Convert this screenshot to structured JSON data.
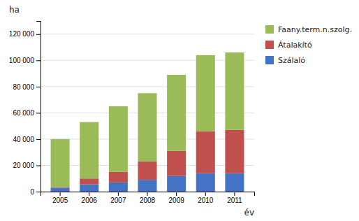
{
  "chart_data": {
    "type": "bar",
    "stacked": true,
    "x_label": "év",
    "y_label": "ha",
    "categories": [
      "2005",
      "2006",
      "2007",
      "2008",
      "2009",
      "2010",
      "2011"
    ],
    "series": [
      {
        "name": "Szálaló",
        "color": "#4472c4",
        "values": [
          3000,
          5500,
          7000,
          9000,
          12000,
          14000,
          14000
        ]
      },
      {
        "name": "Átalakító",
        "color": "#c0504d",
        "values": [
          500,
          4500,
          8000,
          14000,
          19000,
          32000,
          33000
        ]
      },
      {
        "name": "Faany.term.n.szolg.",
        "color": "#9bbb59",
        "values": [
          36500,
          43000,
          50000,
          52000,
          58000,
          58000,
          59000
        ]
      }
    ],
    "ylim": [
      0,
      130000
    ],
    "yticks": [
      0,
      {
        "value": 20000,
        "label": "20 000"
      },
      {
        "value": 40000,
        "label": "40 000"
      },
      {
        "value": 60000,
        "label": "60 000"
      },
      {
        "value": 80000,
        "label": "80 000"
      },
      {
        "value": 100000,
        "label": "100 000"
      },
      {
        "value": 120000,
        "label": "120 000"
      }
    ],
    "grid": true,
    "legend": "right"
  }
}
